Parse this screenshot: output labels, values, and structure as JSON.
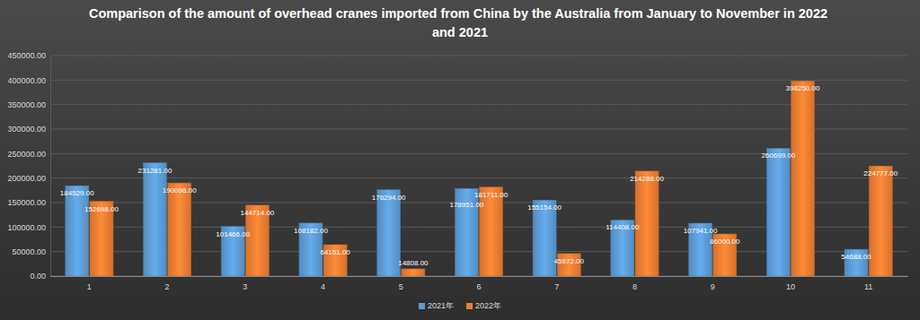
{
  "chart_data": {
    "type": "bar",
    "title": "Comparison of the amount of overhead cranes imported from China by the Australia from January to November in 2022 and 2021",
    "categories": [
      "1",
      "2",
      "3",
      "4",
      "5",
      "6",
      "7",
      "8",
      "9",
      "10",
      "11"
    ],
    "series": [
      {
        "name": "2021年",
        "color": "#5b9bd5",
        "values": [
          184529,
          231281,
          101466,
          108182,
          176294,
          178951,
          155154,
          114408,
          107941,
          260699,
          54688
        ],
        "value_labels": [
          "184529.00",
          "231281.00",
          "101466.00",
          "108182.00",
          "176294.00",
          "178951.00",
          "155154.00",
          "114408.00",
          "107941.00",
          "260699.00",
          "54688.00"
        ]
      },
      {
        "name": "2022年",
        "color": "#ed7d31",
        "values": [
          152698,
          190098,
          144714,
          64151,
          14808,
          181711,
          45972,
          214286,
          86000,
          398250,
          224777
        ],
        "value_labels": [
          "152698.00",
          "190098.00",
          "144714.00",
          "64151.00",
          "14808.00",
          "181711.00",
          "45972.00",
          "214286.00",
          "86000.00",
          "398250.00",
          "224777.00"
        ]
      }
    ],
    "ylim": [
      0,
      450000
    ],
    "yticks": [
      {
        "value": 0,
        "label": "0.00"
      },
      {
        "value": 50000,
        "label": "50000.00"
      },
      {
        "value": 100000,
        "label": "100000.00"
      },
      {
        "value": 150000,
        "label": "150000.00"
      },
      {
        "value": 200000,
        "label": "200000.00"
      },
      {
        "value": 250000,
        "label": "250000.00"
      },
      {
        "value": 300000,
        "label": "300000.00"
      },
      {
        "value": 350000,
        "label": "350000.00"
      },
      {
        "value": 400000,
        "label": "400000.00"
      },
      {
        "value": 450000,
        "label": "450000.00"
      }
    ],
    "grid": true,
    "legend": "bottom",
    "data_labels": true
  }
}
